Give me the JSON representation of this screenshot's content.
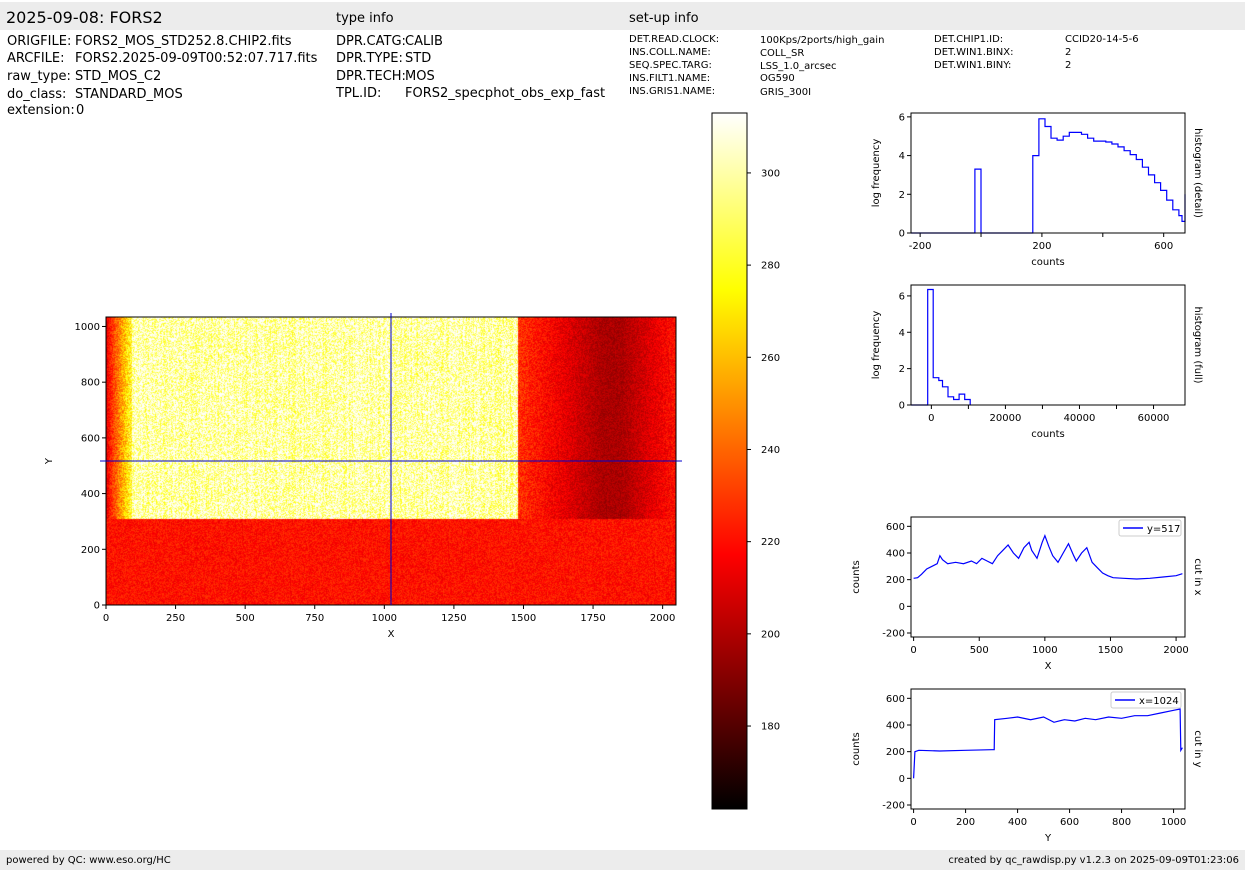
{
  "header": {
    "title": "2025-09-08: FORS2",
    "type_info_heading": "type info",
    "setup_info_heading": "set-up info"
  },
  "file_info": [
    {
      "key": "ORIGFILE:",
      "value": "FORS2_MOS_STD252.8.CHIP2.fits"
    },
    {
      "key": "ARCFILE:",
      "value": "FORS2.2025-09-09T00:52:07.717.fits"
    },
    {
      "key": "raw_type:",
      "value": "STD_MOS_C2"
    },
    {
      "key": "do_class:",
      "value": "STANDARD_MOS"
    },
    {
      "key": "extension:",
      "value": "0"
    }
  ],
  "type_info": [
    {
      "key": "DPR.CATG:",
      "value": "CALIB"
    },
    {
      "key": "DPR.TYPE:",
      "value": "STD"
    },
    {
      "key": "DPR.TECH:",
      "value": "MOS"
    },
    {
      "key": "TPL.ID:",
      "value": "FORS2_specphot_obs_exp_fast"
    }
  ],
  "setup_info_left": [
    {
      "key": "DET.READ.CLOCK:",
      "value": "100Kps/2ports/high_gain"
    },
    {
      "key": "INS.COLL.NAME:",
      "value": "COLL_SR"
    },
    {
      "key": "SEQ.SPEC.TARG:",
      "value": "LSS_1.0_arcsec"
    },
    {
      "key": "INS.FILT1.NAME:",
      "value": "OG590"
    },
    {
      "key": "INS.GRIS1.NAME:",
      "value": "GRIS_300I"
    }
  ],
  "setup_info_right": [
    {
      "key": "DET.CHIP1.ID:",
      "value": "CCID20-14-5-6"
    },
    {
      "key": "DET.WIN1.BINX:",
      "value": "2"
    },
    {
      "key": "DET.WIN1.BINY:",
      "value": "2"
    }
  ],
  "footer": {
    "left": "powered by QC: www.eso.org/HC",
    "right": "created by qc_rawdisp.py v1.2.3 on 2025-09-09T01:23:06"
  },
  "chart_data": [
    {
      "type": "heatmap",
      "xlabel": "X",
      "ylabel": "Y",
      "xlim": [
        0,
        2048
      ],
      "ylim": [
        0,
        1034
      ],
      "xticks": [
        "0",
        "250",
        "500",
        "750",
        "1000",
        "1250",
        "1500",
        "1750",
        "2000"
      ],
      "yticks": [
        "0",
        "200",
        "400",
        "600",
        "800",
        "1000"
      ],
      "cursor": {
        "x": 1024,
        "y": 517
      },
      "cmap": "hot",
      "lower_region_top_y": 310,
      "bright_region_x": [
        90,
        1480
      ],
      "colorbar": {
        "range": [
          162,
          313
        ],
        "ticks": [
          "180",
          "200",
          "220",
          "240",
          "260",
          "280",
          "300"
        ]
      }
    },
    {
      "type": "line",
      "title": "histogram (detail)",
      "xlabel": "counts",
      "ylabel": "log frequency",
      "xlim": [
        -230,
        670
      ],
      "ylim": [
        0,
        6.2
      ],
      "xticks": [
        "-200",
        "200",
        "600"
      ],
      "yticks": [
        "0",
        "2",
        "4",
        "6"
      ],
      "color": "#0000ff",
      "steps": [
        [
          -230,
          0
        ],
        [
          -20,
          0
        ],
        [
          -20,
          3.3
        ],
        [
          0,
          3.3
        ],
        [
          0,
          0
        ],
        [
          170,
          0
        ],
        [
          170,
          4.0
        ],
        [
          190,
          4.0
        ],
        [
          190,
          5.9
        ],
        [
          210,
          5.9
        ],
        [
          210,
          5.5
        ],
        [
          230,
          5.5
        ],
        [
          230,
          4.9
        ],
        [
          250,
          4.9
        ],
        [
          250,
          4.8
        ],
        [
          270,
          4.8
        ],
        [
          270,
          5.0
        ],
        [
          290,
          5.0
        ],
        [
          290,
          5.2
        ],
        [
          330,
          5.2
        ],
        [
          330,
          5.1
        ],
        [
          350,
          5.1
        ],
        [
          350,
          4.9
        ],
        [
          370,
          4.9
        ],
        [
          370,
          4.75
        ],
        [
          410,
          4.75
        ],
        [
          410,
          4.7
        ],
        [
          430,
          4.7
        ],
        [
          430,
          4.6
        ],
        [
          450,
          4.6
        ],
        [
          450,
          4.45
        ],
        [
          470,
          4.45
        ],
        [
          470,
          4.25
        ],
        [
          490,
          4.25
        ],
        [
          490,
          4.05
        ],
        [
          510,
          4.05
        ],
        [
          510,
          3.8
        ],
        [
          530,
          3.8
        ],
        [
          530,
          3.4
        ],
        [
          550,
          3.4
        ],
        [
          550,
          3.0
        ],
        [
          570,
          3.0
        ],
        [
          570,
          2.6
        ],
        [
          590,
          2.6
        ],
        [
          590,
          2.2
        ],
        [
          610,
          2.2
        ],
        [
          610,
          1.7
        ],
        [
          630,
          1.7
        ],
        [
          630,
          1.2
        ],
        [
          650,
          1.2
        ],
        [
          650,
          0.9
        ],
        [
          660,
          0.9
        ],
        [
          660,
          0.6
        ],
        [
          670,
          0.6
        ],
        [
          670,
          2.0
        ]
      ]
    },
    {
      "type": "line",
      "title": "histogram (full)",
      "xlabel": "counts",
      "ylabel": "log frequency",
      "xlim": [
        -5500,
        68500
      ],
      "ylim": [
        0,
        6.6
      ],
      "xticks": [
        "0",
        "20000",
        "40000",
        "60000"
      ],
      "yticks": [
        "0",
        "2",
        "4",
        "6"
      ],
      "color": "#0000ff",
      "steps": [
        [
          -5500,
          0
        ],
        [
          -1000,
          0
        ],
        [
          -1000,
          6.35
        ],
        [
          500,
          6.35
        ],
        [
          500,
          1.5
        ],
        [
          2000,
          1.5
        ],
        [
          2000,
          1.35
        ],
        [
          3000,
          1.35
        ],
        [
          3000,
          1.0
        ],
        [
          4500,
          1.0
        ],
        [
          4500,
          0.45
        ],
        [
          6000,
          0.45
        ],
        [
          6000,
          0.3
        ],
        [
          7500,
          0.3
        ],
        [
          7500,
          0.6
        ],
        [
          9000,
          0.6
        ],
        [
          9000,
          0.3
        ],
        [
          10500,
          0.3
        ],
        [
          10500,
          0
        ]
      ]
    },
    {
      "type": "line",
      "title": "cut in x",
      "xlabel": "X",
      "ylabel": "counts",
      "xlim": [
        -20,
        2068
      ],
      "ylim": [
        -230,
        670
      ],
      "xticks": [
        "0",
        "500",
        "1000",
        "1500",
        "2000"
      ],
      "yticks": [
        "-200",
        "0",
        "200",
        "400",
        "600"
      ],
      "legend": "y=517",
      "color": "#0000ff",
      "series": [
        [
          0,
          210
        ],
        [
          30,
          215
        ],
        [
          60,
          240
        ],
        [
          100,
          280
        ],
        [
          140,
          300
        ],
        [
          180,
          320
        ],
        [
          200,
          380
        ],
        [
          220,
          350
        ],
        [
          260,
          320
        ],
        [
          320,
          330
        ],
        [
          380,
          320
        ],
        [
          440,
          340
        ],
        [
          480,
          320
        ],
        [
          520,
          360
        ],
        [
          560,
          340
        ],
        [
          600,
          320
        ],
        [
          640,
          380
        ],
        [
          680,
          420
        ],
        [
          720,
          460
        ],
        [
          760,
          400
        ],
        [
          800,
          360
        ],
        [
          840,
          440
        ],
        [
          880,
          480
        ],
        [
          900,
          420
        ],
        [
          940,
          360
        ],
        [
          980,
          480
        ],
        [
          1000,
          530
        ],
        [
          1030,
          450
        ],
        [
          1060,
          380
        ],
        [
          1100,
          330
        ],
        [
          1140,
          400
        ],
        [
          1180,
          470
        ],
        [
          1220,
          380
        ],
        [
          1240,
          340
        ],
        [
          1280,
          400
        ],
        [
          1320,
          440
        ],
        [
          1360,
          330
        ],
        [
          1400,
          290
        ],
        [
          1440,
          250
        ],
        [
          1480,
          230
        ],
        [
          1520,
          215
        ],
        [
          1600,
          210
        ],
        [
          1700,
          205
        ],
        [
          1800,
          210
        ],
        [
          1900,
          220
        ],
        [
          2000,
          230
        ],
        [
          2048,
          245
        ]
      ]
    },
    {
      "type": "line",
      "title": "cut in y",
      "xlabel": "Y",
      "ylabel": "counts",
      "xlim": [
        -10,
        1044
      ],
      "ylim": [
        -230,
        670
      ],
      "xticks": [
        "0",
        "200",
        "400",
        "600",
        "800",
        "1000"
      ],
      "yticks": [
        "-200",
        "0",
        "200",
        "400",
        "600"
      ],
      "legend": "x=1024",
      "color": "#0000ff",
      "series": [
        [
          0,
          0
        ],
        [
          5,
          200
        ],
        [
          20,
          210
        ],
        [
          100,
          205
        ],
        [
          200,
          210
        ],
        [
          300,
          215
        ],
        [
          310,
          215
        ],
        [
          312,
          440
        ],
        [
          360,
          450
        ],
        [
          400,
          460
        ],
        [
          450,
          440
        ],
        [
          500,
          460
        ],
        [
          540,
          420
        ],
        [
          580,
          440
        ],
        [
          620,
          430
        ],
        [
          660,
          450
        ],
        [
          700,
          440
        ],
        [
          750,
          460
        ],
        [
          800,
          450
        ],
        [
          850,
          470
        ],
        [
          900,
          470
        ],
        [
          950,
          490
        ],
        [
          1000,
          510
        ],
        [
          1025,
          520
        ],
        [
          1028,
          210
        ],
        [
          1034,
          230
        ]
      ]
    }
  ]
}
